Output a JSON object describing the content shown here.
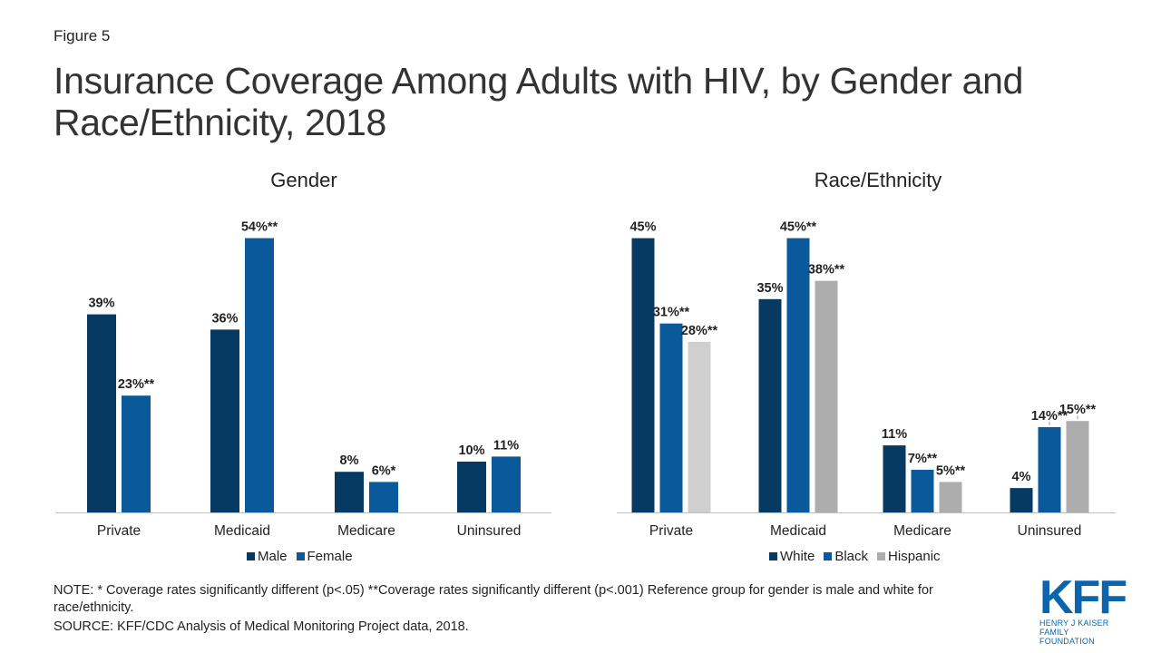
{
  "figure_label": "Figure 5",
  "title": "Insurance Coverage Among Adults with HIV, by Gender and Race/Ethnicity, 2018",
  "note": "NOTE: * Coverage rates significantly different (p<.05) **Coverage rates significantly different (p<.001) Reference group for gender is male and white for race/ethnicity.",
  "source": "SOURCE: KFF/CDC Analysis of Medical Monitoring Project data, 2018.",
  "logo": {
    "text": "KFF",
    "line1": "HENRY J KAISER",
    "line2": "FAMILY FOUNDATION"
  },
  "colors": {
    "white_male": "#063a63",
    "black_female": "#0a5a9b",
    "hispanic": "#adadad",
    "hispanic_light": "#cfcfcf"
  },
  "chart_data": [
    {
      "type": "bar",
      "title": "Gender",
      "categories": [
        "Private",
        "Medicaid",
        "Medicare",
        "Uninsured"
      ],
      "series": [
        {
          "name": "Male",
          "values": [
            39,
            36,
            8,
            10
          ],
          "labels": [
            "39%",
            "36%",
            "8%",
            "10%"
          ],
          "color": "#063a63"
        },
        {
          "name": "Female",
          "values": [
            23,
            54,
            6,
            11
          ],
          "labels": [
            "23%**",
            "54%**",
            "6%*",
            "11%"
          ],
          "color": "#0a5a9b"
        }
      ],
      "ylim": [
        0,
        54
      ],
      "legend": "bottom"
    },
    {
      "type": "bar",
      "title": "Race/Ethnicity",
      "categories": [
        "Private",
        "Medicaid",
        "Medicare",
        "Uninsured"
      ],
      "series": [
        {
          "name": "White",
          "values": [
            45,
            35,
            11,
            4
          ],
          "labels": [
            "45%",
            "35%",
            "11%",
            "4%"
          ],
          "color": "#063a63"
        },
        {
          "name": "Black",
          "values": [
            31,
            45,
            7,
            14
          ],
          "labels": [
            "31%**",
            "45%**",
            "7%**",
            "14%**"
          ],
          "color": "#0a5a9b"
        },
        {
          "name": "Hispanic",
          "values": [
            28,
            38,
            5,
            15
          ],
          "labels": [
            "28%**",
            "38%**",
            "5%**",
            "15%**"
          ],
          "color": "#adadad"
        }
      ],
      "ylim": [
        0,
        45
      ],
      "legend": "bottom"
    }
  ]
}
